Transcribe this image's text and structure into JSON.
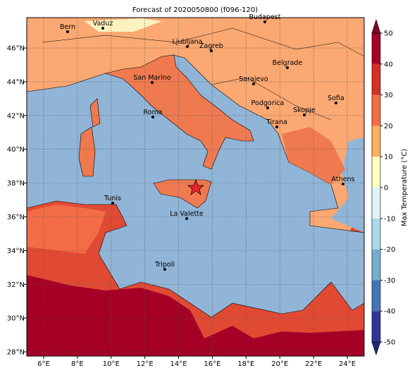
{
  "title": "Forecast of 2020050800 (f096-120)",
  "map": {
    "xlim": [
      5,
      25
    ],
    "ylim": [
      27.75,
      47.8
    ],
    "lon_ticks": [
      {
        "value": 6,
        "label": "6°E"
      },
      {
        "value": 8,
        "label": "8°E"
      },
      {
        "value": 10,
        "label": "10°E"
      },
      {
        "value": 12,
        "label": "12°E"
      },
      {
        "value": 14,
        "label": "14°E"
      },
      {
        "value": 16,
        "label": "16°E"
      },
      {
        "value": 18,
        "label": "18°E"
      },
      {
        "value": 20,
        "label": "20°E"
      },
      {
        "value": 22,
        "label": "22°E"
      },
      {
        "value": 24,
        "label": "24°E"
      }
    ],
    "lat_ticks": [
      {
        "value": 28,
        "label": "28°N"
      },
      {
        "value": 30,
        "label": "30°N"
      },
      {
        "value": 32,
        "label": "32°N"
      },
      {
        "value": 34,
        "label": "34°N"
      },
      {
        "value": 36,
        "label": "36°N"
      },
      {
        "value": 38,
        "label": "38°N"
      },
      {
        "value": 40,
        "label": "40°N"
      },
      {
        "value": 42,
        "label": "42°N"
      },
      {
        "value": 44,
        "label": "44°N"
      },
      {
        "value": 46,
        "label": "46°N"
      }
    ],
    "grid": true,
    "cities": [
      "Bern",
      "Vaduz",
      "Budapest",
      "Ljubljana",
      "Zagreb",
      "Belgrade",
      "San Marino",
      "Sarajevo",
      "Sofia",
      "Podgorica",
      "Skopje",
      "Roma",
      "Tirana",
      "Athens",
      "Tunis",
      "La Valette",
      "Tripoli"
    ]
  },
  "colorbar": {
    "label": "Max Temperature (°C)",
    "lim": [
      -50,
      50
    ],
    "ticks": [
      -50,
      -40,
      -30,
      -20,
      -10,
      0,
      10,
      20,
      30,
      40,
      50
    ],
    "colors": [
      "#1a2a7a",
      "#313695",
      "#4575b4",
      "#74add1",
      "#abd9e9",
      "#e0f3f8",
      "#ffffbf",
      "#fdae61",
      "#f46d43",
      "#d73027",
      "#a50026",
      "#800026"
    ]
  }
}
